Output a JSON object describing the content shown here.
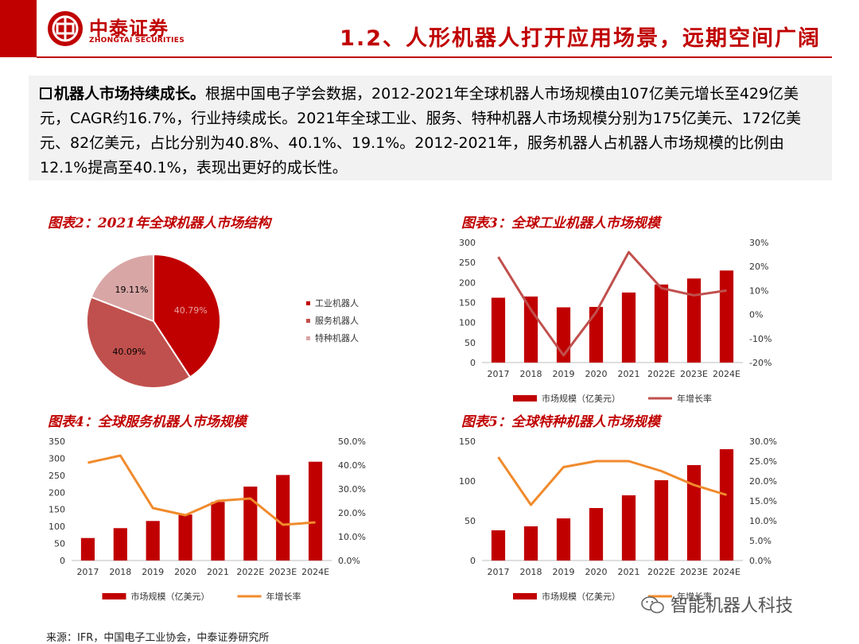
{
  "header": {
    "logo_cn": "中泰证券",
    "logo_en": "ZHONGTAI SECURITIES",
    "title": "1.2、人形机器人打开应用场景，远期空间广阔"
  },
  "summary": {
    "lead": "机器人市场持续成长。",
    "body": "根据中国电子学会数据，2012-2021年全球机器人市场规模由107亿美元增长至429亿美元，CAGR约16.7%，行业持续成长。2021年全球工业、服务、特种机器人市场规模分别为175亿美元、172亿美元、82亿美元，占比分别为40.8%、40.1%、19.1%。2012-2021年，服务机器人占机器人市场规模的比例由12.1%提高至40.1%，表现出更好的成长性。"
  },
  "chart_data": [
    {
      "id": "fig2",
      "type": "pie",
      "title": "图表2：2021年全球机器人市场结构",
      "labels": [
        "工业机器人",
        "服务机器人",
        "特种机器人"
      ],
      "values": [
        40.79,
        40.09,
        19.11
      ],
      "data_labels": [
        "40.79%",
        "40.09%",
        "19.11%"
      ],
      "colors": [
        "#c00000",
        "#c0504d",
        "#d9a6a6"
      ],
      "legend": "right"
    },
    {
      "id": "fig3",
      "type": "bar",
      "title": "图表3：全球工业机器人市场规模",
      "categories": [
        "2017",
        "2018",
        "2019",
        "2020",
        "2021",
        "2022E",
        "2023E",
        "2024E"
      ],
      "series": [
        {
          "name": "市场规模（亿美元）",
          "type": "bar",
          "axis": "left",
          "color": "#c00000",
          "values": [
            162,
            165,
            138,
            139,
            175,
            195,
            210,
            230
          ]
        },
        {
          "name": "年增长率",
          "type": "line",
          "axis": "right",
          "color": "#c0504d",
          "values": [
            24,
            2,
            -17,
            1,
            26,
            11,
            8,
            10
          ]
        }
      ],
      "ylim_left": [
        0,
        300
      ],
      "yticks_left": [
        0,
        50,
        100,
        150,
        200,
        250,
        300
      ],
      "ylim_right": [
        -20,
        30
      ],
      "yticks_right": [
        "-20%",
        "-10%",
        "0%",
        "10%",
        "20%",
        "30%"
      ],
      "legend": "bottom"
    },
    {
      "id": "fig4",
      "type": "bar",
      "title": "图表4：全球服务机器人市场规模",
      "categories": [
        "2017",
        "2018",
        "2019",
        "2020",
        "2021",
        "2022E",
        "2023E",
        "2024E"
      ],
      "series": [
        {
          "name": "市场规模（亿美元）",
          "type": "bar",
          "axis": "left",
          "color": "#c00000",
          "values": [
            66,
            95,
            116,
            135,
            172,
            217,
            251,
            290
          ]
        },
        {
          "name": "年增长率",
          "type": "line",
          "axis": "right",
          "color": "#f08a2c",
          "values": [
            41,
            44,
            22,
            19,
            25,
            26,
            15,
            16
          ]
        }
      ],
      "ylim_left": [
        0,
        350
      ],
      "yticks_left": [
        0,
        50,
        100,
        150,
        200,
        250,
        300,
        350
      ],
      "ylim_right": [
        0,
        50
      ],
      "yticks_right": [
        "0.0%",
        "10.0%",
        "20.0%",
        "30.0%",
        "40.0%",
        "50.0%"
      ],
      "legend": "bottom"
    },
    {
      "id": "fig5",
      "type": "bar",
      "title": "图表5：全球特种机器人市场规模",
      "categories": [
        "2017",
        "2018",
        "2019",
        "2020",
        "2021",
        "2022E",
        "2023E",
        "2024E"
      ],
      "series": [
        {
          "name": "市场规模（亿美元）",
          "type": "bar",
          "axis": "left",
          "color": "#c00000",
          "values": [
            38,
            43,
            53,
            66,
            82,
            101,
            120,
            140
          ]
        },
        {
          "name": "年增长率",
          "type": "line",
          "axis": "right",
          "color": "#f08a2c",
          "values": [
            26,
            14,
            23.5,
            25,
            25,
            22.5,
            19,
            16.5
          ]
        }
      ],
      "ylim_left": [
        0,
        150
      ],
      "yticks_left": [
        0,
        50,
        100,
        150
      ],
      "ylim_right": [
        0,
        30
      ],
      "yticks_right": [
        "0.0%",
        "5.0%",
        "10.0%",
        "15.0%",
        "20.0%",
        "25.0%",
        "30.0%"
      ],
      "legend": "bottom"
    }
  ],
  "source": "来源：IFR，中国电子工业协会，中泰证券研究所",
  "watermark": "智能机器人科技"
}
